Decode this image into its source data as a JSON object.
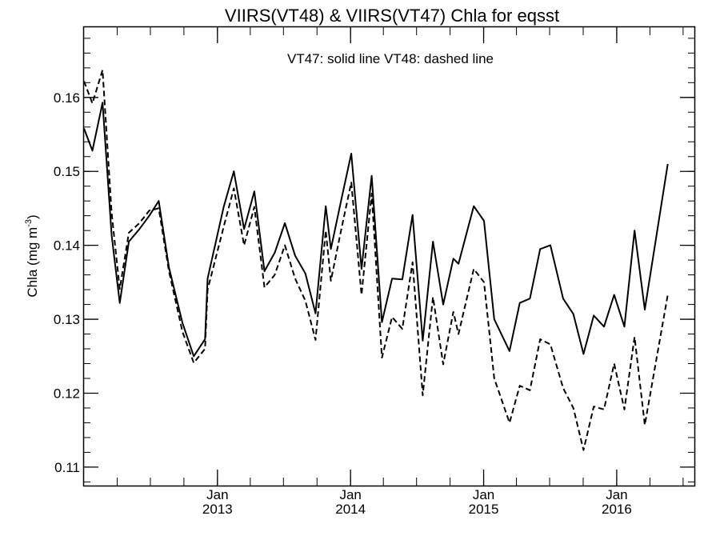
{
  "chart_data": {
    "type": "line",
    "title": "VIIRS(VT48) & VIIRS(VT47)  Chla for eqsst",
    "annotation": "VT47: solid line   VT48: dashed line",
    "ylabel": "Chla (mg m",
    "ylabel_superscript": "-3",
    "ylabel_suffix": ")",
    "xlim": [
      "2012-01-01",
      "2016-08-01"
    ],
    "ylim": [
      0.1075,
      0.1695
    ],
    "y_ticks": [
      "0.11",
      "0.12",
      "0.13",
      "0.14",
      "0.15",
      "0.16"
    ],
    "y_minor_step": 0.002,
    "x_major_ticks": [
      {
        "date": "2013-01-01",
        "month": "Jan",
        "year": "2013"
      },
      {
        "date": "2014-01-01",
        "month": "Jan",
        "year": "2014"
      },
      {
        "date": "2015-01-01",
        "month": "Jan",
        "year": "2015"
      },
      {
        "date": "2016-01-01",
        "month": "Jan",
        "year": "2016"
      }
    ],
    "x_minor_months": 3,
    "grid": false,
    "series": [
      {
        "name": "VT47",
        "style": "solid",
        "points": [
          [
            "2012-01-01",
            0.1558
          ],
          [
            "2012-01-24",
            0.1528
          ],
          [
            "2012-02-21",
            0.1593
          ],
          [
            "2012-03-17",
            0.1413
          ],
          [
            "2012-04-08",
            0.1322
          ],
          [
            "2012-05-03",
            0.1405
          ],
          [
            "2012-06-01",
            0.1422
          ],
          [
            "2012-06-28",
            0.144
          ],
          [
            "2012-07-24",
            0.146
          ],
          [
            "2012-08-21",
            0.137
          ],
          [
            "2012-09-27",
            0.1295
          ],
          [
            "2012-10-28",
            0.125
          ],
          [
            "2012-11-28",
            0.1273
          ],
          [
            "2012-12-05",
            0.1355
          ],
          [
            "2013-01-18",
            0.1452
          ],
          [
            "2013-02-15",
            0.15
          ],
          [
            "2013-03-15",
            0.1422
          ],
          [
            "2013-04-12",
            0.1473
          ],
          [
            "2013-05-10",
            0.1365
          ],
          [
            "2013-06-07",
            0.139
          ],
          [
            "2013-07-05",
            0.143
          ],
          [
            "2013-08-02",
            0.1386
          ],
          [
            "2013-08-30",
            0.1362
          ],
          [
            "2013-09-27",
            0.1308
          ],
          [
            "2013-10-25",
            0.1453
          ],
          [
            "2013-11-08",
            0.1395
          ],
          [
            "2013-12-06",
            0.146
          ],
          [
            "2014-01-03",
            0.1524
          ],
          [
            "2014-01-31",
            0.1368
          ],
          [
            "2014-02-28",
            0.1494
          ],
          [
            "2014-03-28",
            0.1296
          ],
          [
            "2014-04-25",
            0.1355
          ],
          [
            "2014-05-23",
            0.1354
          ],
          [
            "2014-06-20",
            0.1441
          ],
          [
            "2014-07-18",
            0.1271
          ],
          [
            "2014-08-15",
            0.1405
          ],
          [
            "2014-09-12",
            0.132
          ],
          [
            "2014-10-10",
            0.1382
          ],
          [
            "2014-10-24",
            0.1375
          ],
          [
            "2014-12-05",
            0.1453
          ],
          [
            "2015-01-02",
            0.1433
          ],
          [
            "2015-01-30",
            0.13
          ],
          [
            "2015-03-13",
            0.1257
          ],
          [
            "2015-04-10",
            0.1322
          ],
          [
            "2015-05-08",
            0.1328
          ],
          [
            "2015-06-05",
            0.1395
          ],
          [
            "2015-07-03",
            0.14
          ],
          [
            "2015-08-07",
            0.1328
          ],
          [
            "2015-09-04",
            0.1307
          ],
          [
            "2015-10-02",
            0.1253
          ],
          [
            "2015-10-30",
            0.1305
          ],
          [
            "2015-11-27",
            0.129
          ],
          [
            "2015-12-25",
            0.1333
          ],
          [
            "2016-01-22",
            0.129
          ],
          [
            "2016-02-19",
            0.142
          ],
          [
            "2016-03-18",
            0.1313
          ],
          [
            "2016-05-20",
            0.151
          ]
        ]
      },
      {
        "name": "VT48",
        "style": "dashed",
        "points": [
          [
            "2012-01-01",
            0.1622
          ],
          [
            "2012-01-24",
            0.1592
          ],
          [
            "2012-02-21",
            0.1637
          ],
          [
            "2012-03-17",
            0.1443
          ],
          [
            "2012-04-08",
            0.1341
          ],
          [
            "2012-05-03",
            0.1417
          ],
          [
            "2012-06-01",
            0.143
          ],
          [
            "2012-06-28",
            0.1447
          ],
          [
            "2012-07-24",
            0.145
          ],
          [
            "2012-08-21",
            0.1365
          ],
          [
            "2012-09-27",
            0.1283
          ],
          [
            "2012-10-28",
            0.1241
          ],
          [
            "2012-11-28",
            0.126
          ],
          [
            "2012-12-05",
            0.134
          ],
          [
            "2013-01-18",
            0.1425
          ],
          [
            "2013-02-15",
            0.1477
          ],
          [
            "2013-03-15",
            0.14
          ],
          [
            "2013-04-12",
            0.1452
          ],
          [
            "2013-05-10",
            0.1343
          ],
          [
            "2013-06-07",
            0.136
          ],
          [
            "2013-07-05",
            0.14
          ],
          [
            "2013-08-02",
            0.1355
          ],
          [
            "2013-08-30",
            0.1325
          ],
          [
            "2013-09-27",
            0.1272
          ],
          [
            "2013-10-25",
            0.142
          ],
          [
            "2013-11-08",
            0.1352
          ],
          [
            "2013-12-06",
            0.142
          ],
          [
            "2014-01-03",
            0.1485
          ],
          [
            "2014-01-31",
            0.1333
          ],
          [
            "2014-02-28",
            0.147
          ],
          [
            "2014-03-28",
            0.1248
          ],
          [
            "2014-04-25",
            0.1303
          ],
          [
            "2014-05-23",
            0.1287
          ],
          [
            "2014-06-20",
            0.1377
          ],
          [
            "2014-07-18",
            0.1197
          ],
          [
            "2014-08-15",
            0.133
          ],
          [
            "2014-09-12",
            0.1239
          ],
          [
            "2014-10-10",
            0.131
          ],
          [
            "2014-10-24",
            0.128
          ],
          [
            "2014-12-05",
            0.1368
          ],
          [
            "2015-01-02",
            0.135
          ],
          [
            "2015-01-30",
            0.122
          ],
          [
            "2015-03-13",
            0.116
          ],
          [
            "2015-04-10",
            0.121
          ],
          [
            "2015-05-08",
            0.1204
          ],
          [
            "2015-06-05",
            0.1273
          ],
          [
            "2015-07-03",
            0.1266
          ],
          [
            "2015-08-07",
            0.1207
          ],
          [
            "2015-09-04",
            0.118
          ],
          [
            "2015-10-02",
            0.1123
          ],
          [
            "2015-10-30",
            0.1182
          ],
          [
            "2015-11-27",
            0.1178
          ],
          [
            "2015-12-25",
            0.124
          ],
          [
            "2016-01-22",
            0.1178
          ],
          [
            "2016-02-19",
            0.1276
          ],
          [
            "2016-03-18",
            0.1157
          ],
          [
            "2016-05-20",
            0.1333
          ]
        ]
      }
    ]
  }
}
